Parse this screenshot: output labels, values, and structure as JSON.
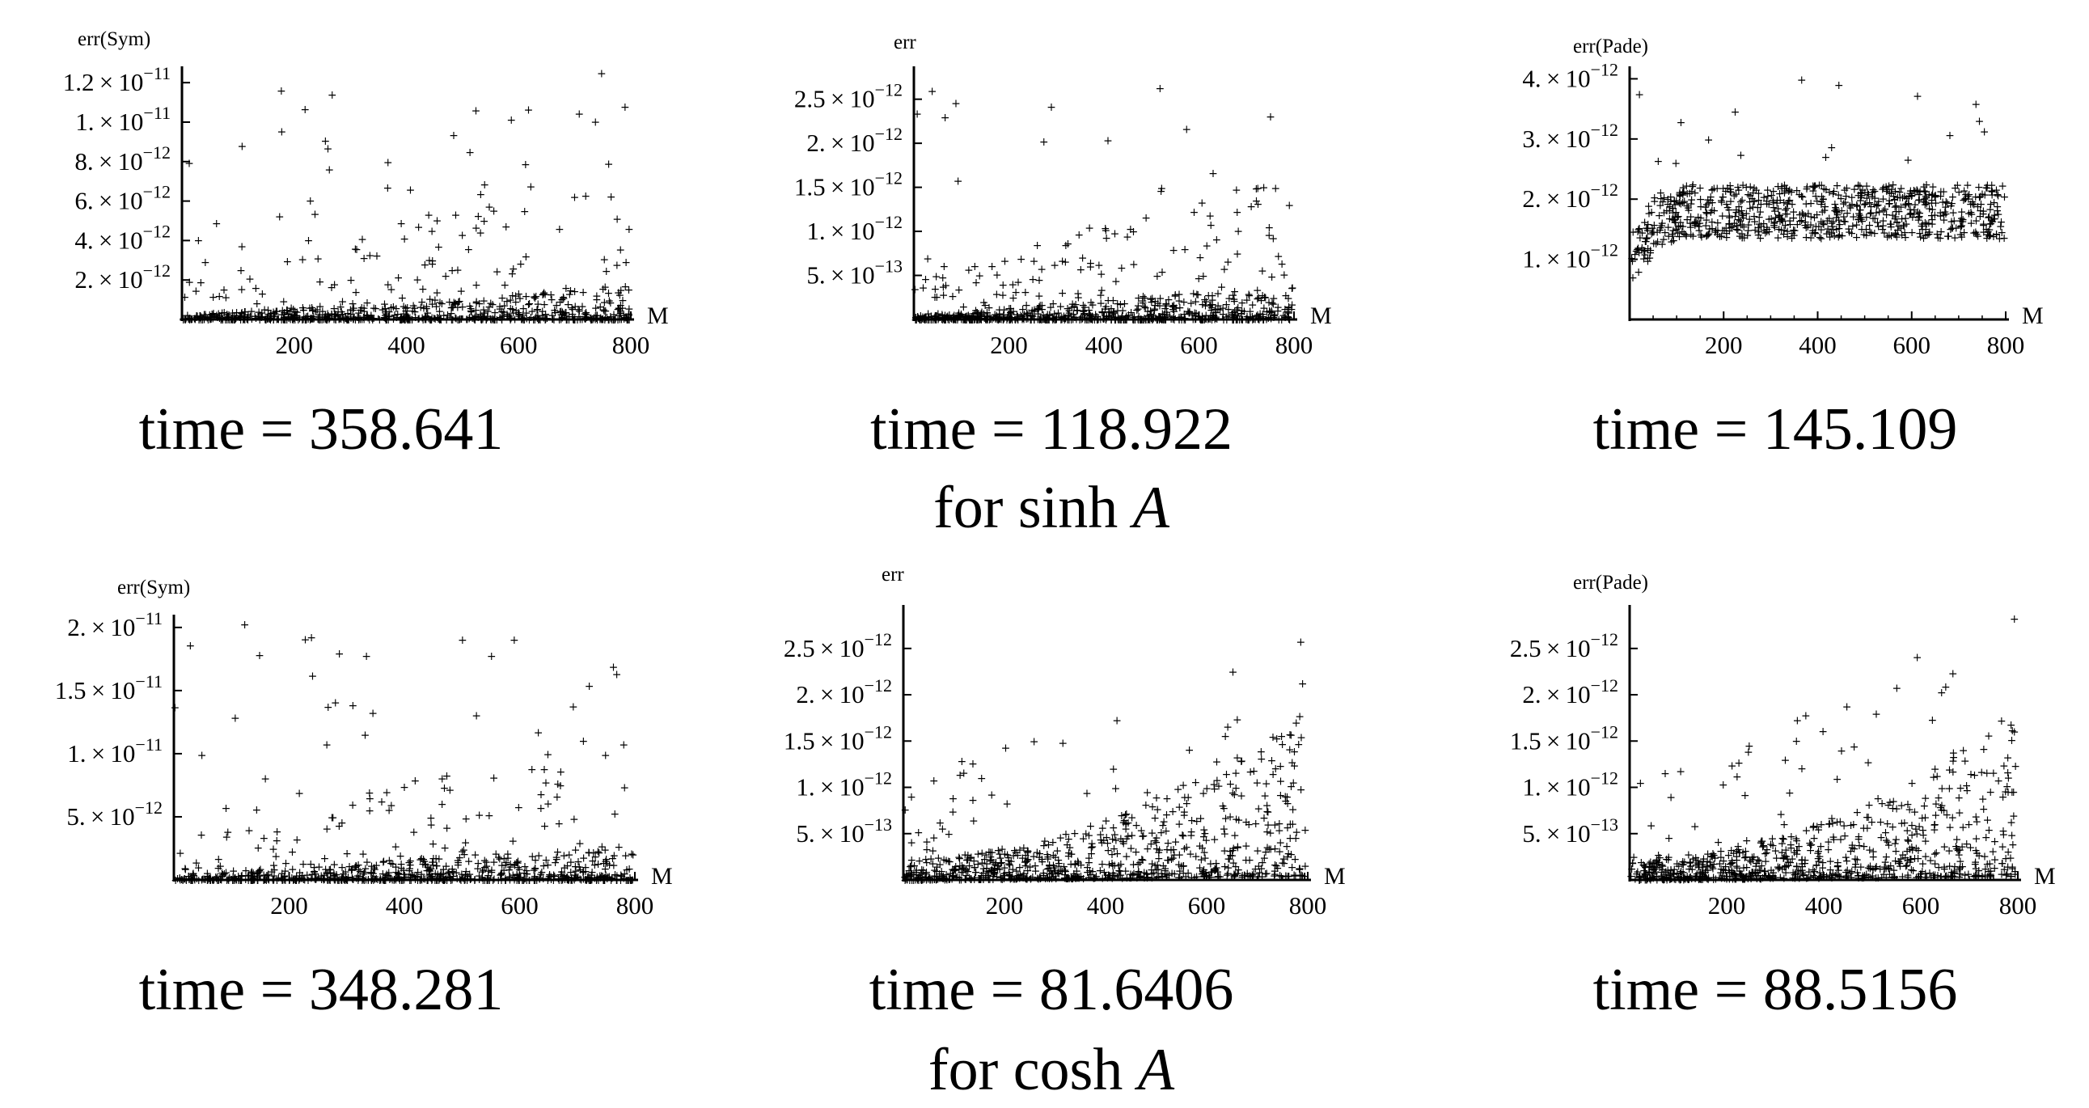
{
  "chart_data": [
    {
      "type": "scatter",
      "ylabel": "err(Sym)",
      "xlabel": "M",
      "xlim": [
        0,
        800
      ],
      "ylim": [
        0,
        1.25e-11
      ],
      "xticks": [
        200,
        400,
        600,
        800
      ],
      "yticks": [
        {
          "v": 2e-12,
          "m": "2.",
          "e": "-12"
        },
        {
          "v": 4e-12,
          "m": "4.",
          "e": "-12"
        },
        {
          "v": 6e-12,
          "m": "6.",
          "e": "-12"
        },
        {
          "v": 8e-12,
          "m": "8.",
          "e": "-12"
        },
        {
          "v": 1e-11,
          "m": "1.",
          "e": "-11"
        },
        {
          "v": 1.2e-11,
          "m": "1.2",
          "e": "-11"
        }
      ],
      "pattern": "grow-bottom",
      "n": 800,
      "seed": 11,
      "time": "time = 358.641"
    },
    {
      "type": "scatter",
      "ylabel": "err",
      "xlabel": "M",
      "xlim": [
        0,
        800
      ],
      "ylim": [
        0,
        2.8e-12
      ],
      "xticks": [
        200,
        400,
        600,
        800
      ],
      "yticks": [
        {
          "v": 5e-13,
          "m": "5.",
          "e": "-13"
        },
        {
          "v": 1e-12,
          "m": "1.",
          "e": "-12"
        },
        {
          "v": 1.5e-12,
          "m": "1.5",
          "e": "-12"
        },
        {
          "v": 2e-12,
          "m": "2.",
          "e": "-12"
        },
        {
          "v": 2.5e-12,
          "m": "2.5",
          "e": "-12"
        }
      ],
      "pattern": "grow-bottom",
      "n": 800,
      "seed": 23,
      "time": "time = 118.922"
    },
    {
      "type": "scatter",
      "ylabel": "err(Pade)",
      "xlabel": "M",
      "xlim": [
        0,
        800
      ],
      "ylim": [
        0,
        4.1e-12
      ],
      "xticks": [
        200,
        400,
        600,
        800
      ],
      "yticks": [
        {
          "v": 1e-12,
          "m": "1.",
          "e": "-12"
        },
        {
          "v": 2e-12,
          "m": "2.",
          "e": "-12"
        },
        {
          "v": 3e-12,
          "m": "3.",
          "e": "-12"
        },
        {
          "v": 4e-12,
          "m": "4.",
          "e": "-12"
        }
      ],
      "pattern": "band",
      "n": 800,
      "seed": 37,
      "time": "time = 145.109"
    },
    {
      "type": "scatter",
      "ylabel": "err(Sym)",
      "xlabel": "M",
      "xlim": [
        0,
        800
      ],
      "ylim": [
        0,
        2.05e-11
      ],
      "xticks": [
        200,
        400,
        600,
        800
      ],
      "yticks": [
        {
          "v": 5e-12,
          "m": "5.",
          "e": "-12"
        },
        {
          "v": 1e-11,
          "m": "1.",
          "e": "-11"
        },
        {
          "v": 1.5e-11,
          "m": "1.5",
          "e": "-11"
        },
        {
          "v": 2e-11,
          "m": "2.",
          "e": "-11"
        }
      ],
      "pattern": "grow-bottom",
      "n": 800,
      "seed": 51,
      "time": "time = 348.281"
    },
    {
      "type": "scatter",
      "ylabel": "err",
      "xlabel": "M",
      "xlim": [
        0,
        800
      ],
      "ylim": [
        0,
        2.9e-12
      ],
      "xticks": [
        200,
        400,
        600,
        800
      ],
      "yticks": [
        {
          "v": 5e-13,
          "m": "5.",
          "e": "-13"
        },
        {
          "v": 1e-12,
          "m": "1.",
          "e": "-12"
        },
        {
          "v": 1.5e-12,
          "m": "1.5",
          "e": "-12"
        },
        {
          "v": 2e-12,
          "m": "2.",
          "e": "-12"
        },
        {
          "v": 2.5e-12,
          "m": "2.5",
          "e": "-12"
        }
      ],
      "pattern": "grow-spread",
      "n": 800,
      "seed": 67,
      "time": "time = 81.6406"
    },
    {
      "type": "scatter",
      "ylabel": "err(Pade)",
      "xlabel": "M",
      "xlim": [
        0,
        800
      ],
      "ylim": [
        0,
        2.9e-12
      ],
      "xticks": [
        200,
        400,
        600,
        800
      ],
      "yticks": [
        {
          "v": 5e-13,
          "m": "5.",
          "e": "-13"
        },
        {
          "v": 1e-12,
          "m": "1.",
          "e": "-12"
        },
        {
          "v": 1.5e-12,
          "m": "1.5",
          "e": "-12"
        },
        {
          "v": 2e-12,
          "m": "2.",
          "e": "-12"
        },
        {
          "v": 2.5e-12,
          "m": "2.5",
          "e": "-12"
        }
      ],
      "pattern": "grow-spread",
      "n": 800,
      "seed": 79,
      "time": "time = 88.5156"
    }
  ],
  "captions": {
    "sinh": {
      "prefix": "for  sinh ",
      "var": "A"
    },
    "cosh": {
      "prefix": "for  cosh ",
      "var": "A"
    }
  }
}
